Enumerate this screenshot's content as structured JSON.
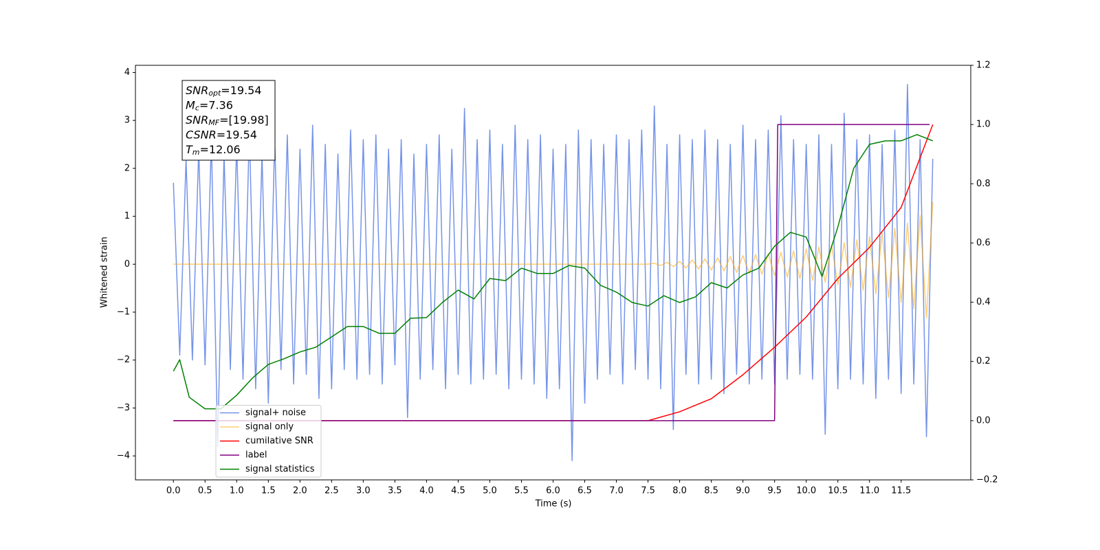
{
  "chart_data": {
    "type": "line",
    "xlabel": "Time (s)",
    "ylabel": "Whitened strain",
    "xlim": [
      -0.6,
      12.6
    ],
    "ylim": [
      -4.5,
      4.15
    ],
    "y2lim": [
      -0.2,
      1.2
    ],
    "xticks": [
      {
        "value": 0,
        "label": "0.0"
      },
      0.5,
      {
        "value": 1,
        "label": "1.0"
      },
      1.5,
      {
        "value": 2,
        "label": "2.0"
      },
      2.5,
      {
        "value": 3,
        "label": "3.0"
      },
      3.5,
      {
        "value": 4,
        "label": "4.0"
      },
      4.5,
      {
        "value": 5,
        "label": "5.0"
      },
      5.5,
      {
        "value": 6,
        "label": "6.0"
      },
      6.5,
      {
        "value": 7,
        "label": "7.0"
      },
      7.5,
      {
        "value": 8,
        "label": "8.0"
      },
      8.5,
      {
        "value": 9,
        "label": "9.0"
      },
      9.5,
      {
        "value": 10,
        "label": "10.0"
      },
      10.5,
      {
        "value": 11,
        "label": "11.0"
      },
      11.5
    ],
    "yticks": [
      {
        "value": -4,
        "label": "−4"
      },
      {
        "value": -3,
        "label": "−3"
      },
      {
        "value": -2,
        "label": "−2"
      },
      {
        "value": -1,
        "label": "−1"
      },
      0,
      1,
      2,
      3,
      4
    ],
    "y2ticks": [
      {
        "value": -0.2,
        "label": "−0.2"
      },
      {
        "value": 0,
        "label": "0.0"
      },
      0.2,
      0.4,
      0.6,
      0.8,
      {
        "value": 1,
        "label": "1.0"
      },
      1.2
    ],
    "legend": "lower left",
    "annotation": [
      {
        "main": "SNR",
        "sub": "opt",
        "value": "=19.54"
      },
      {
        "main": "M",
        "sub": "c",
        "value": "=7.36"
      },
      {
        "main": "SNR",
        "sub": "MF",
        "value": "=[19.98]"
      },
      {
        "main": "CSNR",
        "sub": "",
        "value": "=19.54"
      },
      {
        "main": "T",
        "sub": "m",
        "value": "=12.06"
      }
    ],
    "series": [
      {
        "name": "signal+ noise",
        "color": "#7593e8",
        "axis": "y",
        "x": [
          0,
          0.1,
          0.2,
          0.3,
          0.4,
          0.5,
          0.6,
          0.7,
          0.8,
          0.9,
          1,
          1.1,
          1.2,
          1.3,
          1.4,
          1.5,
          1.6,
          1.7,
          1.8,
          1.9,
          2,
          2.1,
          2.2,
          2.3,
          2.4,
          2.5,
          2.6,
          2.7,
          2.8,
          2.9,
          3,
          3.1,
          3.2,
          3.3,
          3.4,
          3.5,
          3.6,
          3.7,
          3.8,
          3.9,
          4,
          4.1,
          4.2,
          4.3,
          4.4,
          4.5,
          4.6,
          4.7,
          4.8,
          4.9,
          5,
          5.1,
          5.2,
          5.3,
          5.4,
          5.5,
          5.6,
          5.7,
          5.8,
          5.9,
          6,
          6.1,
          6.2,
          6.3,
          6.4,
          6.5,
          6.6,
          6.7,
          6.8,
          6.9,
          7,
          7.1,
          7.2,
          7.3,
          7.4,
          7.5,
          7.6,
          7.7,
          7.8,
          7.9,
          8,
          8.1,
          8.2,
          8.3,
          8.4,
          8.5,
          8.6,
          8.7,
          8.8,
          8.9,
          9,
          9.1,
          9.2,
          9.3,
          9.4,
          9.5,
          9.6,
          9.7,
          9.8,
          9.9,
          10,
          10.1,
          10.2,
          10.3,
          10.4,
          10.5,
          10.6,
          10.7,
          10.8,
          10.9,
          11,
          11.1,
          11.2,
          11.3,
          11.4,
          11.5,
          11.6,
          11.7,
          11.8,
          11.9,
          12
        ],
        "values": [
          1.7,
          -1.9,
          2.2,
          -2.0,
          2.4,
          -2.1,
          2.6,
          -3.8,
          2.3,
          -2.2,
          2.5,
          -2.4,
          2.8,
          -2.6,
          2.3,
          -2.9,
          2.6,
          -2.2,
          2.7,
          -2.5,
          2.4,
          -2.3,
          2.9,
          -2.8,
          2.5,
          -2.6,
          2.3,
          -2.2,
          2.8,
          -2.4,
          2.6,
          -2.3,
          2.7,
          -2.5,
          2.4,
          -2.1,
          2.6,
          -3.2,
          2.3,
          -2.4,
          2.5,
          -2.2,
          2.7,
          -2.6,
          2.4,
          -2.3,
          3.25,
          -2.5,
          2.6,
          -2.4,
          2.8,
          -2.3,
          2.5,
          -2.6,
          2.9,
          -2.4,
          2.6,
          -2.5,
          2.7,
          -2.8,
          2.4,
          -2.6,
          2.5,
          -4.1,
          2.8,
          -2.9,
          2.6,
          -2.4,
          2.5,
          -2.3,
          2.7,
          -2.5,
          2.6,
          -2.2,
          2.8,
          -2.4,
          3.3,
          -2.6,
          2.5,
          -3.45,
          2.7,
          -2.3,
          2.6,
          -2.5,
          2.8,
          -2.4,
          2.6,
          -2.7,
          2.5,
          -2.3,
          2.9,
          -2.5,
          2.6,
          -2.4,
          2.8,
          -2.5,
          3.1,
          -2.4,
          2.6,
          -2.3,
          2.5,
          -2.4,
          2.7,
          -3.55,
          2.5,
          -2.6,
          3.15,
          -2.4,
          2.6,
          -2.5,
          2.7,
          -2.8,
          2.5,
          -2.4,
          2.8,
          -2.7,
          3.75,
          -2.5,
          2.6,
          -3.6,
          2.2
        ]
      },
      {
        "name": "signal only",
        "color": "#ffa500",
        "alpha": 0.55,
        "axis": "y",
        "x": [
          0,
          7.5,
          7.6,
          7.7,
          7.8,
          7.9,
          8,
          8.1,
          8.2,
          8.3,
          8.4,
          8.5,
          8.6,
          8.7,
          8.8,
          8.9,
          9,
          9.1,
          9.2,
          9.3,
          9.4,
          9.5,
          9.6,
          9.7,
          9.8,
          9.9,
          10,
          10.1,
          10.2,
          10.3,
          10.4,
          10.5,
          10.6,
          10.7,
          10.8,
          10.9,
          11,
          11.1,
          11.2,
          11.3,
          11.4,
          11.5,
          11.6,
          11.7,
          11.8,
          11.9,
          12
        ],
        "values": [
          0,
          0,
          0.02,
          -0.03,
          0.04,
          -0.05,
          0.06,
          -0.08,
          0.09,
          -0.1,
          0.11,
          -0.12,
          0.13,
          -0.14,
          0.16,
          -0.17,
          0.18,
          -0.19,
          0.2,
          -0.21,
          0.22,
          -0.24,
          0.25,
          -0.27,
          0.28,
          -0.3,
          0.32,
          -0.34,
          0.36,
          -0.38,
          0.4,
          -0.42,
          0.45,
          -0.48,
          0.51,
          -0.54,
          0.58,
          -0.62,
          0.66,
          -0.7,
          0.75,
          -0.8,
          0.86,
          -0.93,
          1.02,
          -1.12,
          1.3
        ]
      },
      {
        "name": "cumilative SNR",
        "color": "#ff0000",
        "axis": "y2",
        "x": [
          0,
          7.5,
          8,
          8.5,
          9,
          9.5,
          10,
          10.5,
          11,
          11.5,
          12
        ],
        "values": [
          0,
          0,
          0.03,
          0.074,
          0.155,
          0.248,
          0.35,
          0.48,
          0.585,
          0.72,
          1.0
        ]
      },
      {
        "name": "label",
        "color": "#800080",
        "axis": "y2",
        "x": [
          0,
          9.5,
          9.55,
          11.95
        ],
        "values": [
          0,
          0,
          1,
          1
        ]
      },
      {
        "name": "signal statistics",
        "color": "#008000",
        "axis": "y2",
        "x": [
          0,
          0.1,
          0.25,
          0.5,
          0.75,
          1,
          1.25,
          1.5,
          1.75,
          2,
          2.25,
          2.5,
          2.75,
          3,
          3.25,
          3.5,
          3.75,
          4,
          4.25,
          4.5,
          4.75,
          5,
          5.25,
          5.5,
          5.75,
          6,
          6.25,
          6.5,
          6.75,
          7,
          7.25,
          7.5,
          7.75,
          8,
          8.25,
          8.5,
          8.75,
          9,
          9.25,
          9.5,
          9.75,
          10,
          10.25,
          10.5,
          10.75,
          11,
          11.25,
          11.5,
          11.75,
          12
        ],
        "values": [
          0.167,
          0.206,
          0.079,
          0.04,
          0.04,
          0.086,
          0.144,
          0.19,
          0.209,
          0.232,
          0.248,
          0.283,
          0.318,
          0.318,
          0.295,
          0.295,
          0.346,
          0.348,
          0.399,
          0.441,
          0.411,
          0.48,
          0.473,
          0.515,
          0.497,
          0.497,
          0.524,
          0.515,
          0.457,
          0.434,
          0.399,
          0.387,
          0.422,
          0.399,
          0.418,
          0.466,
          0.448,
          0.492,
          0.515,
          0.589,
          0.636,
          0.62,
          0.487,
          0.654,
          0.852,
          0.933,
          0.945,
          0.945,
          0.966,
          0.945
        ]
      }
    ]
  }
}
